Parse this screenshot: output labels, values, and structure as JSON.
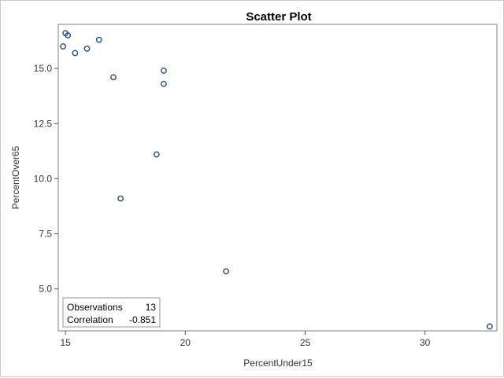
{
  "chart_data": {
    "type": "scatter",
    "title": "Scatter Plot",
    "xlabel": "PercentUnder15",
    "ylabel": "PercentOver65",
    "xlim": [
      14.7,
      33.0
    ],
    "ylim": [
      3.1,
      17.0
    ],
    "x_ticks": [
      15,
      20,
      25,
      30
    ],
    "y_ticks": [
      5.0,
      7.5,
      10.0,
      12.5,
      15.0
    ],
    "x_tick_labels": [
      "15",
      "20",
      "25",
      "30"
    ],
    "y_tick_labels": [
      "5.0",
      "7.5",
      "10.0",
      "12.5",
      "15.0"
    ],
    "grid": false,
    "points": [
      {
        "x": 14.9,
        "y": 16.0
      },
      {
        "x": 15.0,
        "y": 16.6
      },
      {
        "x": 15.1,
        "y": 16.5
      },
      {
        "x": 15.4,
        "y": 15.7
      },
      {
        "x": 15.9,
        "y": 15.9
      },
      {
        "x": 16.4,
        "y": 16.3
      },
      {
        "x": 17.0,
        "y": 14.6
      },
      {
        "x": 17.3,
        "y": 9.1
      },
      {
        "x": 18.8,
        "y": 11.1
      },
      {
        "x": 19.1,
        "y": 14.9
      },
      {
        "x": 19.1,
        "y": 14.3
      },
      {
        "x": 21.7,
        "y": 5.8
      },
      {
        "x": 32.7,
        "y": 3.3
      }
    ],
    "marker_color": "#1f4e8c",
    "stats": {
      "placement": "bottom-left",
      "rows": [
        {
          "label": "Observations",
          "value": "13"
        },
        {
          "label": "Correlation",
          "value": "-0.851"
        }
      ]
    }
  }
}
